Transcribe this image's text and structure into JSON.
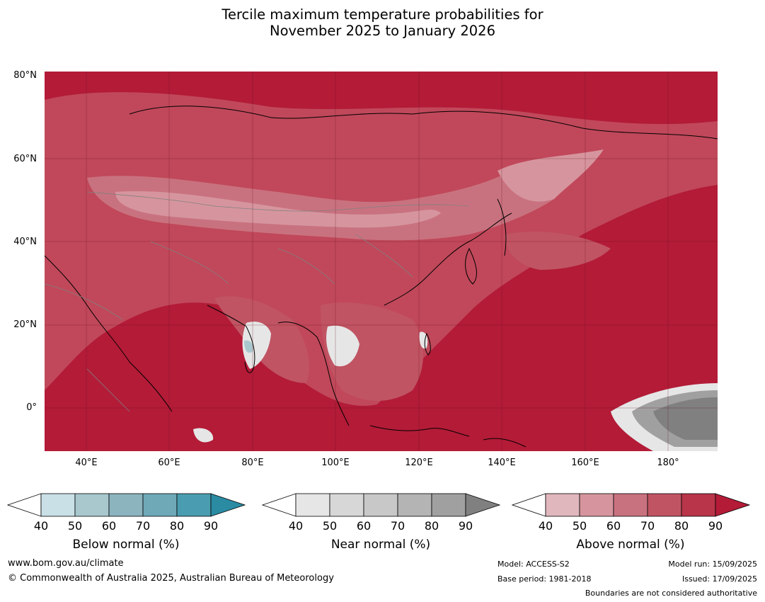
{
  "title": {
    "line1": "Tercile maximum temperature probabilities for",
    "line2": "November 2025 to January 2026"
  },
  "map": {
    "lat_labels": [
      "80°N",
      "60°N",
      "40°N",
      "20°N",
      "0°"
    ],
    "lon_labels": [
      "40°E",
      "60°E",
      "80°E",
      "100°E",
      "120°E",
      "140°E",
      "160°E",
      "180°"
    ],
    "dominant_color": "#b31b37"
  },
  "legends": [
    {
      "id": "below",
      "title": "Below normal (%)",
      "ticks": [
        "40",
        "50",
        "60",
        "70",
        "80",
        "90"
      ],
      "colors": [
        "#ffffff",
        "#c9e1e6",
        "#a8c8ce",
        "#8cb4bf",
        "#6fa9b8",
        "#4a9db0",
        "#2b8ba3"
      ]
    },
    {
      "id": "near",
      "title": "Near normal (%)",
      "ticks": [
        "40",
        "50",
        "60",
        "70",
        "80",
        "90"
      ],
      "colors": [
        "#ffffff",
        "#e6e6e6",
        "#d7d7d7",
        "#c8c8c8",
        "#b4b4b4",
        "#a0a0a0",
        "#808080"
      ]
    },
    {
      "id": "above",
      "title": "Above normal (%)",
      "ticks": [
        "40",
        "50",
        "60",
        "70",
        "80",
        "90"
      ],
      "colors": [
        "#ffffff",
        "#e0b7bd",
        "#d6959e",
        "#c9727f",
        "#c05463",
        "#b8354a",
        "#b31b37"
      ]
    }
  ],
  "footer": {
    "website": "www.bom.gov.au/climate",
    "copyright": "© Commonwealth of Australia 2025, Australian Bureau of Meteorology",
    "model": "Model: ACCESS-S2",
    "base_period": "Base period: 1981-2018",
    "model_run": "Model run: 15/09/2025",
    "issued": "Issued: 17/09/2025",
    "disclaimer": "Boundaries are not considered authoritative"
  }
}
